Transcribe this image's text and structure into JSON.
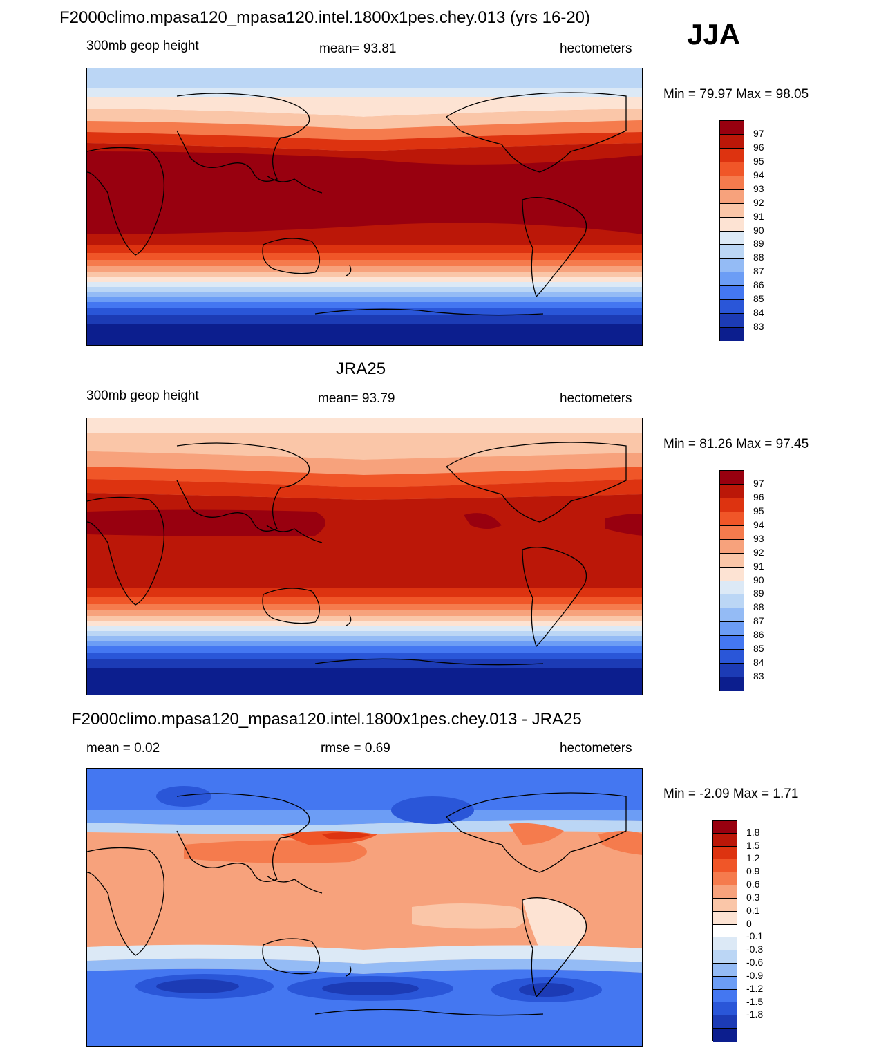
{
  "header": {
    "title": "F2000climo.mpasa120_mpasa120.intel.1800x1pes.chey.013 (yrs 16-20)",
    "season": "JJA"
  },
  "panels": [
    {
      "id": "model",
      "title": "",
      "left_label": "300mb geop height",
      "center_label": "mean=  93.81",
      "right_label": "hectometers",
      "minmax": "Min =  79.97 Max =  98.05",
      "colors": [
        "#98000f",
        "#bb1708",
        "#dd3310",
        "#f05628",
        "#f57b4d",
        "#f7a27c",
        "#fac6a8",
        "#fde3d3",
        "#dce9f6",
        "#bbd6f5",
        "#94bbf5",
        "#6c9df5",
        "#4477f1",
        "#2a56d8",
        "#1c3bb5",
        "#0c1e8e"
      ],
      "labels": [
        "97",
        "96",
        "95",
        "94",
        "93",
        "92",
        "91",
        "90",
        "89",
        "88",
        "87",
        "86",
        "85",
        "84",
        "83"
      ]
    },
    {
      "id": "obs",
      "title": "JRA25",
      "left_label": "300mb geop height",
      "center_label": "mean=  93.79",
      "right_label": "hectometers",
      "minmax": "Min =  81.26 Max =  97.45",
      "colors": [
        "#98000f",
        "#bb1708",
        "#dd3310",
        "#f05628",
        "#f57b4d",
        "#f7a27c",
        "#fac6a8",
        "#fde3d3",
        "#dce9f6",
        "#bbd6f5",
        "#94bbf5",
        "#6c9df5",
        "#4477f1",
        "#2a56d8",
        "#1c3bb5",
        "#0c1e8e"
      ],
      "labels": [
        "97",
        "96",
        "95",
        "94",
        "93",
        "92",
        "91",
        "90",
        "89",
        "88",
        "87",
        "86",
        "85",
        "84",
        "83"
      ]
    },
    {
      "id": "diff",
      "title": "F2000climo.mpasa120_mpasa120.intel.1800x1pes.chey.013 - JRA25",
      "left_label": "mean =   0.02",
      "center_label": "rmse =   0.69",
      "right_label": "hectometers",
      "minmax": "Min =  -2.09 Max =   1.71",
      "colors": [
        "#98000f",
        "#bb1708",
        "#dd3310",
        "#f05628",
        "#f57b4d",
        "#f7a27c",
        "#fac6a8",
        "#fde3d3",
        "#ffffff",
        "#dce9f6",
        "#bbd6f5",
        "#94bbf5",
        "#6c9df5",
        "#4477f1",
        "#2a56d8",
        "#1c3bb5",
        "#0c1e8e"
      ],
      "labels": [
        "1.8",
        "1.5",
        "1.2",
        "0.9",
        "0.6",
        "0.3",
        "0.1",
        "0",
        "-0.1",
        "-0.3",
        "-0.6",
        "-0.9",
        "-1.2",
        "-1.5",
        "-1.8"
      ]
    }
  ]
}
